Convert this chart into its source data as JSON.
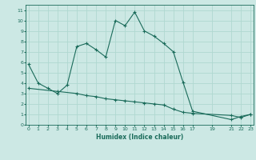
{
  "xlabel": "Humidex (Indice chaleur)",
  "background_color": "#cce8e4",
  "line_color": "#1a6b5a",
  "grid_color": "#b0d8d0",
  "xticks": [
    0,
    1,
    2,
    3,
    4,
    5,
    6,
    7,
    8,
    9,
    10,
    11,
    12,
    13,
    14,
    15,
    16,
    17,
    19,
    21,
    22,
    23
  ],
  "xtick_labels": [
    "0",
    "1",
    "2",
    "3",
    "4",
    "5",
    "6",
    "7",
    "8",
    "9",
    "10",
    "11",
    "12",
    "13",
    "14",
    "15",
    "16",
    "17",
    "19",
    "21",
    "22",
    "23"
  ],
  "yticks": [
    0,
    1,
    2,
    3,
    4,
    5,
    6,
    7,
    8,
    9,
    10,
    11
  ],
  "xlim": [
    -0.3,
    23.3
  ],
  "ylim": [
    0,
    11.5
  ],
  "series1_x": [
    0,
    1,
    2,
    3,
    4,
    5,
    6,
    7,
    8,
    9,
    10,
    11,
    12,
    13,
    14,
    15,
    16,
    17,
    21,
    22,
    23
  ],
  "series1_y": [
    5.8,
    4.0,
    3.5,
    3.0,
    3.8,
    7.5,
    7.8,
    7.2,
    6.5,
    10.0,
    9.5,
    10.8,
    9.0,
    8.5,
    7.8,
    7.0,
    4.1,
    1.3,
    0.5,
    0.8,
    1.0
  ],
  "series2_x": [
    0,
    3,
    5,
    6,
    7,
    8,
    9,
    10,
    11,
    12,
    13,
    14,
    15,
    16,
    17,
    21,
    22,
    23
  ],
  "series2_y": [
    3.5,
    3.2,
    3.0,
    2.8,
    2.7,
    2.5,
    2.4,
    2.3,
    2.2,
    2.1,
    2.0,
    1.9,
    1.5,
    1.2,
    1.1,
    0.9,
    0.7,
    1.0
  ]
}
